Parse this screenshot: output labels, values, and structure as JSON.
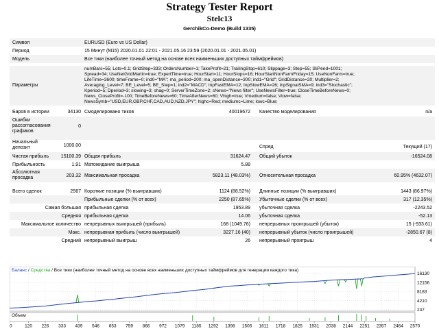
{
  "report": {
    "title": "Strategy Tester Report",
    "subtitle": "Stelc13",
    "broker": "GerchikCo-Demo (Build 1335)"
  },
  "info": {
    "symbol_label": "Символ",
    "symbol_value": "EURUSD (Euro vs US Dollar)",
    "period_label": "Период",
    "period_value": "15 Минут (M15) 2020.01.01 22:01 - 2021.05.16 23:59 (2020.01.01 - 2021.05.01)",
    "model_label": "Модель",
    "model_value": "Все тики (наиболее точный метод на основе всех наименьших доступных таймфреймов)",
    "params_label": "Параметры",
    "params_lines": [
      "numBars=55; Lots=0.1; GridStep=333; OrdersNumber=1; TakeProfit=21; TrailingStop=610; Slippage=3; Step=55; SliPend=1001;",
      "Spread=34; UseNetGridMartin=true; ExpertTime=true; HourStart=11; HourStops=16; HourStartNonFarmFriday=15; UseNonFarm=true;",
      "LifeTime=3600; timeFrame=0; ind0=\"MA\"; ma_period=200; ma_openDistance=300; ind1=\"Grid\"; GridDistance=20; Multiplier=2;",
      "Averaging_Level=7; BE_Level=5; BE_Step=1; ind2=\"MACD\"; InpFastEMA=12; InpSlowEMA=26; InpSignalSMA=9; ind3=\"Stochastic\";",
      "Kperiod=5; Dperiod=3; slowing=3; shag=0; ServerTimeZone=2; sNews=\"News filter\"; UseNewsFilter=true; CloseTimeBeforeNews=0;",
      "News_CloseProfit=-100; TimeBeforeNews=60; TimeAfterNews=60; Vhigh=true; Vmedium=false; Vlow=false;",
      "NewsSymb=\"USD,EUR,GBP,CHF,CAD,AUD,NZD,JPY\"; highc=Red; mediumc=Lime; lowc=Blue;"
    ],
    "bars_label": "Баров в истории",
    "bars_value": "34130",
    "ticks_label": "Смоделировано тиков",
    "ticks_value": "40019672",
    "quality_label": "Качество моделирования",
    "quality_value": "n/a",
    "errors_label": "Ошибки рассогласования графиков",
    "errors_value": "0"
  },
  "stats": {
    "deposit_label": "Начальный депозит",
    "deposit_value": "1000.00",
    "spread_label": "Спред",
    "spread_value": "Текущий (17)",
    "net_profit_label": "Чистая прибыль",
    "net_profit_value": "15100.39",
    "gross_profit_label": "Общая прибыль",
    "gross_profit_value": "31624.47",
    "gross_loss_label": "Общий убыток",
    "gross_loss_value": "-16524.08",
    "profit_factor_label": "Прибыльность",
    "profit_factor_value": "1.91",
    "expected_payoff_label": "Матожидание выигрыша",
    "expected_payoff_value": "5.88",
    "abs_dd_label": "Абсолютная просадка",
    "abs_dd_value": "203.32",
    "max_dd_label": "Максимальная просадка",
    "max_dd_value": "5823.11 (48.03%)",
    "rel_dd_label": "Относительная просадка",
    "rel_dd_value": "60.95% (4632.07)",
    "total_trades_label": "Всего сделок",
    "total_trades_value": "2567",
    "short_label": "Короткие позиции (% выигравших)",
    "short_value": "1124 (88.52%)",
    "long_label": "Длинные позиции (% выигравших)",
    "long_value": "1443 (86.97%)",
    "profit_trades_label": "Прибыльные сделки (% от всех)",
    "profit_trades_value": "2250 (87.65%)",
    "loss_trades_label": "Убыточные сделки (% от всех)",
    "loss_trades_value": "317 (12.35%)",
    "largest_prefix": "Самая большая",
    "largest_profit_label": "прибыльная сделка",
    "largest_profit_value": "1953.89",
    "largest_loss_label": "убыточная сделка",
    "largest_loss_value": "-2243.52",
    "average_prefix": "Средняя",
    "average_profit_label": "прибыльная сделка",
    "average_profit_value": "14.06",
    "average_loss_label": "убыточная сделка",
    "average_loss_value": "-52.13",
    "max_count_prefix": "Максимальное количество",
    "max_consec_wins_label": "непрерывных выигрышей (прибыль)",
    "max_consec_wins_value": "168 (1049.76)",
    "max_consec_losses_label": "непрерывных проигрышей (убыток)",
    "max_consec_losses_value": "15 (-933.61)",
    "maximal_prefix": "Макс.",
    "max_consec_profit_label": "непрерывная прибыль (число выигрышей)",
    "max_consec_profit_value": "3227.16 (40)",
    "max_consec_loss_label": "непрерывный убыток (число проигрышей)",
    "max_consec_loss_value": "-2850.67 (8)",
    "avg_consec_prefix": "Средний",
    "avg_consec_wins_label": "непрерывный выигрыш",
    "avg_consec_wins_value": "26",
    "avg_consec_losses_label": "непрерывный проигрыш",
    "avg_consec_losses_value": "4"
  },
  "chart_data": {
    "type": "line",
    "legend_balance": "Баланс",
    "legend_sep": " / ",
    "legend_equity": "Средства",
    "legend_rest": " / Все тики (наиболее точный метод на основе всех наименьших доступных таймфреймов для генерации каждого тика)",
    "volume_label": "Объем",
    "colors": {
      "balance": "#1f3fb4",
      "equity": "#21a821",
      "grid": "#c8c8c8"
    },
    "y_ticks": [
      16130,
      12156,
      8183,
      4210,
      237
    ],
    "ylim": [
      237,
      16130
    ],
    "x_ticks": [
      0,
      120,
      226,
      333,
      439,
      546,
      653,
      759,
      866,
      972,
      1079,
      1185,
      1292,
      1398,
      1505,
      1611,
      1718,
      1825,
      1931,
      2038,
      2144,
      2251,
      2357,
      2464,
      2570
    ],
    "xlim": [
      0,
      2570
    ],
    "balance": [
      [
        0,
        1000
      ],
      [
        60,
        1150
      ],
      [
        120,
        1400
      ],
      [
        226,
        1900
      ],
      [
        300,
        2500
      ],
      [
        380,
        3100
      ],
      [
        439,
        3450
      ],
      [
        500,
        3900
      ],
      [
        546,
        4100
      ],
      [
        600,
        4500
      ],
      [
        653,
        4800
      ],
      [
        700,
        5200
      ],
      [
        759,
        5600
      ],
      [
        810,
        6000
      ],
      [
        866,
        6500
      ],
      [
        920,
        6950
      ],
      [
        972,
        7300
      ],
      [
        1030,
        7650
      ],
      [
        1079,
        8000
      ],
      [
        1130,
        8400
      ],
      [
        1185,
        8800
      ],
      [
        1240,
        9200
      ],
      [
        1292,
        9700
      ],
      [
        1350,
        10200
      ],
      [
        1398,
        10600
      ],
      [
        1450,
        10800
      ],
      [
        1505,
        11100
      ],
      [
        1560,
        11300
      ],
      [
        1611,
        11500
      ],
      [
        1660,
        11700
      ],
      [
        1718,
        11900
      ],
      [
        1770,
        12100
      ],
      [
        1825,
        12300
      ],
      [
        1880,
        12500
      ],
      [
        1931,
        12650
      ],
      [
        1980,
        12900
      ],
      [
        2038,
        13200
      ],
      [
        2090,
        13400
      ],
      [
        2144,
        13500
      ],
      [
        2200,
        13700
      ],
      [
        2240,
        13800
      ],
      [
        2251,
        14200
      ],
      [
        2270,
        14300
      ],
      [
        2300,
        14600
      ],
      [
        2357,
        14900
      ],
      [
        2410,
        15200
      ],
      [
        2464,
        15500
      ],
      [
        2520,
        15800
      ],
      [
        2570,
        16100
      ]
    ],
    "equity_dips": [
      [
        430,
        6800
      ],
      [
        1160,
        8700
      ],
      [
        1295,
        9600
      ],
      [
        1580,
        11000
      ],
      [
        1645,
        10600
      ],
      [
        2000,
        11700
      ],
      [
        2085,
        10600
      ],
      [
        2130,
        12400
      ],
      [
        2200,
        9400
      ],
      [
        2232,
        10600
      ]
    ],
    "volume_spikes": [
      [
        430,
        0.9
      ],
      [
        1160,
        0.8
      ],
      [
        1295,
        0.6
      ],
      [
        1580,
        0.5
      ],
      [
        1645,
        0.7
      ],
      [
        1900,
        0.4
      ],
      [
        2000,
        0.5
      ],
      [
        2085,
        0.8
      ],
      [
        2200,
        1.0
      ],
      [
        2232,
        0.9
      ],
      [
        2260,
        0.7
      ],
      [
        2320,
        0.4
      ],
      [
        2410,
        0.3
      ]
    ]
  }
}
